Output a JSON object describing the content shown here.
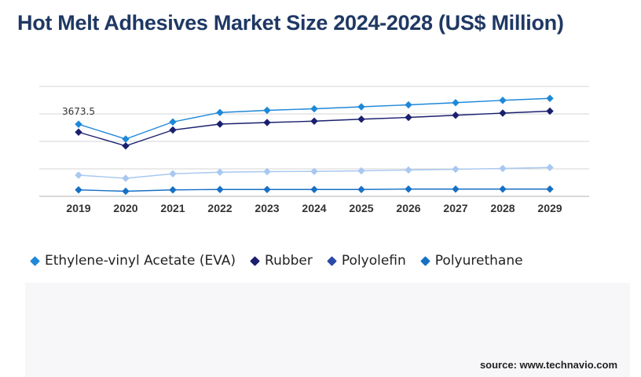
{
  "title": "Hot Melt Adhesives Market Size 2024-2028 (US$ Million)",
  "source": "source: www.technavio.com",
  "chart_data": {
    "type": "line",
    "title": "Hot Melt Adhesives Market Size 2024-2028 (US$ Million)",
    "x": [
      "2019",
      "2020",
      "2021",
      "2022",
      "2023",
      "2024",
      "2025",
      "2026",
      "2027",
      "2028",
      "2029"
    ],
    "ylim": [
      0,
      5600
    ],
    "grid": true,
    "legend_position": "bottom",
    "annotations": [
      {
        "series": "Ethylene-vinyl Acetate (EVA)",
        "x": "2019",
        "label": "3673.5"
      }
    ],
    "series": [
      {
        "name": "Ethylene-vinyl Acetate (EVA)",
        "color": "#1e88d8",
        "values": [
          3673.5,
          2920,
          3790,
          4270,
          4380,
          4460,
          4560,
          4660,
          4770,
          4890,
          4990
        ]
      },
      {
        "name": "Rubber",
        "color": "#1a1f6e",
        "values": [
          3270,
          2570,
          3380,
          3680,
          3760,
          3830,
          3930,
          4020,
          4130,
          4240,
          4340
        ]
      },
      {
        "name": "Polyolefin",
        "color": "#a8c8f0",
        "values": [
          1080,
          920,
          1150,
          1230,
          1260,
          1270,
          1300,
          1340,
          1380,
          1420,
          1470
        ]
      },
      {
        "name": "Polyurethane",
        "color": "#1670c4",
        "values": [
          330,
          260,
          330,
          350,
          350,
          350,
          350,
          370,
          370,
          370,
          370
        ]
      }
    ]
  },
  "legend": [
    {
      "label": "Ethylene-vinyl Acetate (EVA)",
      "color": "#1e88d8"
    },
    {
      "label": "Rubber",
      "color": "#1a1f6e"
    },
    {
      "label": "Polyolefin",
      "color": "#2a4aa8"
    },
    {
      "label": "Polyurethane",
      "color": "#1670c4"
    }
  ]
}
